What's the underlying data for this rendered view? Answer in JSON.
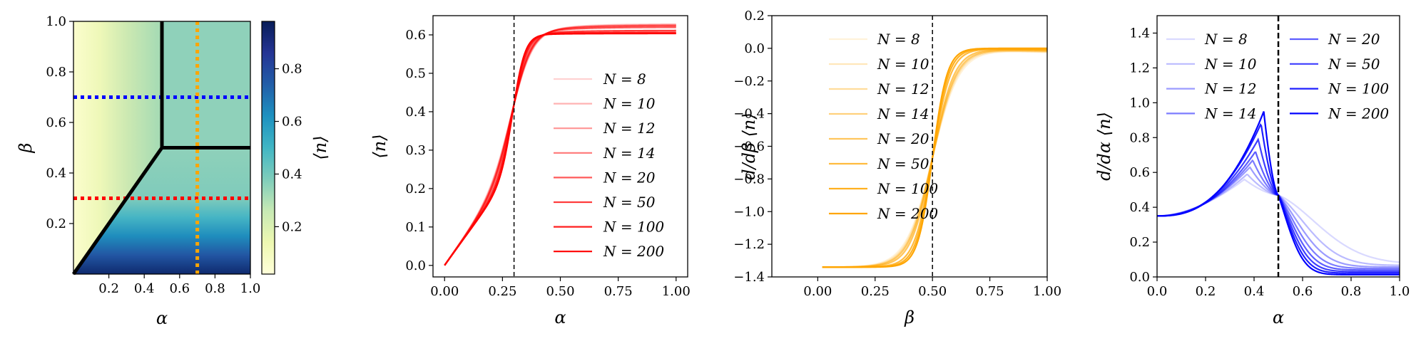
{
  "chart_data": [
    {
      "type": "heatmap",
      "title": "",
      "xlabel": "α",
      "ylabel": "β",
      "colorbar_label": "⟨n⟩",
      "xlim": [
        0,
        1
      ],
      "ylim": [
        0,
        1
      ],
      "xticks": [
        "0.2",
        "0.4",
        "0.6",
        "0.8",
        "1.0"
      ],
      "yticks": [
        "0.2",
        "0.4",
        "0.6",
        "0.8",
        "1.0"
      ],
      "colorbar_ticks": [
        "0.2",
        "0.4",
        "0.6",
        "0.8"
      ],
      "colormap": "YlGnBu",
      "phase_boundaries": [
        {
          "x": [
            0,
            0.5
          ],
          "y": [
            0,
            0.5
          ]
        },
        {
          "x": [
            0.5,
            0.5
          ],
          "y": [
            0.5,
            1.0
          ]
        },
        {
          "x": [
            0.5,
            1.0
          ],
          "y": [
            0.5,
            0.5
          ]
        }
      ],
      "cuts": [
        {
          "orientation": "horizontal",
          "value": 0.7,
          "color": "#0000ff"
        },
        {
          "orientation": "horizontal",
          "value": 0.3,
          "color": "#ff0000"
        },
        {
          "orientation": "vertical",
          "value": 0.7,
          "color": "#ffa500"
        }
      ]
    },
    {
      "type": "line",
      "xlabel": "α",
      "ylabel": "⟨n⟩",
      "xlim": [
        -0.05,
        1.05
      ],
      "ylim": [
        -0.03,
        0.65
      ],
      "xticks": [
        "0.00",
        "0.25",
        "0.50",
        "0.75",
        "1.00"
      ],
      "yticks": [
        "0.0",
        "0.1",
        "0.2",
        "0.3",
        "0.4",
        "0.5",
        "0.6"
      ],
      "vline": 0.3,
      "color": "#ff0000",
      "legend_position": "center-right",
      "series": [
        {
          "name": "N = 8"
        },
        {
          "name": "N = 10"
        },
        {
          "name": "N = 12"
        },
        {
          "name": "N = 14"
        },
        {
          "name": "N = 20"
        },
        {
          "name": "N = 50"
        },
        {
          "name": "N = 100"
        },
        {
          "name": "N = 200"
        }
      ]
    },
    {
      "type": "line",
      "xlabel": "β",
      "ylabel": "d/dβ ⟨n⟩",
      "xlim": [
        -0.2,
        1.0
      ],
      "ylim": [
        -1.4,
        0.2
      ],
      "xticks": [
        "0.00",
        "0.25",
        "0.50",
        "0.75",
        "1.00"
      ],
      "yticks": [
        "−1.4",
        "−1.2",
        "−1.0",
        "−0.8",
        "−0.6",
        "−0.4",
        "−0.2",
        "0.0",
        "0.2"
      ],
      "vline": 0.5,
      "color": "#ffa500",
      "legend_position": "upper-left",
      "series": [
        {
          "name": "N = 8"
        },
        {
          "name": "N = 10"
        },
        {
          "name": "N = 12"
        },
        {
          "name": "N = 14"
        },
        {
          "name": "N = 20"
        },
        {
          "name": "N = 50"
        },
        {
          "name": "N = 100"
        },
        {
          "name": "N = 200"
        }
      ]
    },
    {
      "type": "line",
      "xlabel": "α",
      "ylabel": "d/dα ⟨n⟩",
      "xlim": [
        0,
        1
      ],
      "ylim": [
        0,
        1.5
      ],
      "xticks": [
        "0.0",
        "0.2",
        "0.4",
        "0.6",
        "0.8",
        "1.0"
      ],
      "yticks": [
        "0.0",
        "0.2",
        "0.4",
        "0.6",
        "0.8",
        "1.0",
        "1.2",
        "1.4"
      ],
      "vline": 0.5,
      "color": "#0000ff",
      "legend_position": "upper (two columns)",
      "series": [
        {
          "name": "N = 8",
          "peak": 0.56
        },
        {
          "name": "N = 10",
          "peak": 0.59
        },
        {
          "name": "N = 12",
          "peak": 0.63
        },
        {
          "name": "N = 14",
          "peak": 0.67
        },
        {
          "name": "N = 20",
          "peak": 0.72
        },
        {
          "name": "N = 50",
          "peak": 0.79
        },
        {
          "name": "N = 100",
          "peak": 0.88
        },
        {
          "name": "N = 200",
          "peak": 0.95
        }
      ]
    }
  ]
}
